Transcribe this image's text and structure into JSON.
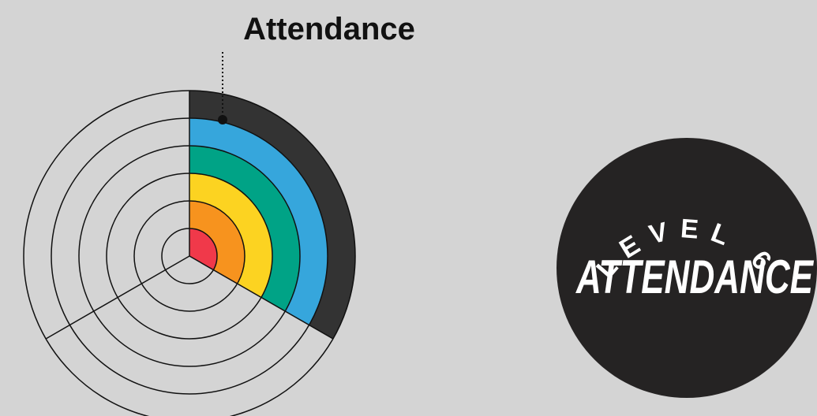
{
  "title": "Attendance",
  "badge": {
    "level": "LEVEL 6",
    "label": "ATTENDANCE"
  }
}
